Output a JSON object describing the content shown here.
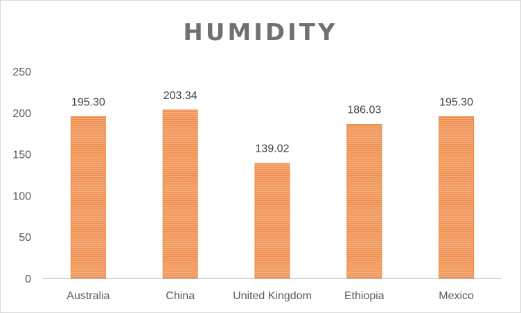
{
  "chart_data": {
    "type": "bar",
    "title": "HUMIDITY",
    "categories": [
      "Australia",
      "China",
      "United Kingdom",
      "Ethiopia",
      "Mexico"
    ],
    "values": [
      195.3,
      203.34,
      139.02,
      186.03,
      195.3
    ],
    "value_labels": [
      "195.30",
      "203.34",
      "139.02",
      "186.03",
      "195.30"
    ],
    "ylim": [
      0,
      250
    ],
    "yticks": [
      0,
      50,
      100,
      150,
      200,
      250
    ],
    "xlabel": "",
    "ylabel": "",
    "grid": false,
    "legend": "none",
    "colors": {
      "bar": "#f4a26b",
      "bar_stripe": "#ee8a45",
      "axis": "#bfbfbf"
    }
  }
}
